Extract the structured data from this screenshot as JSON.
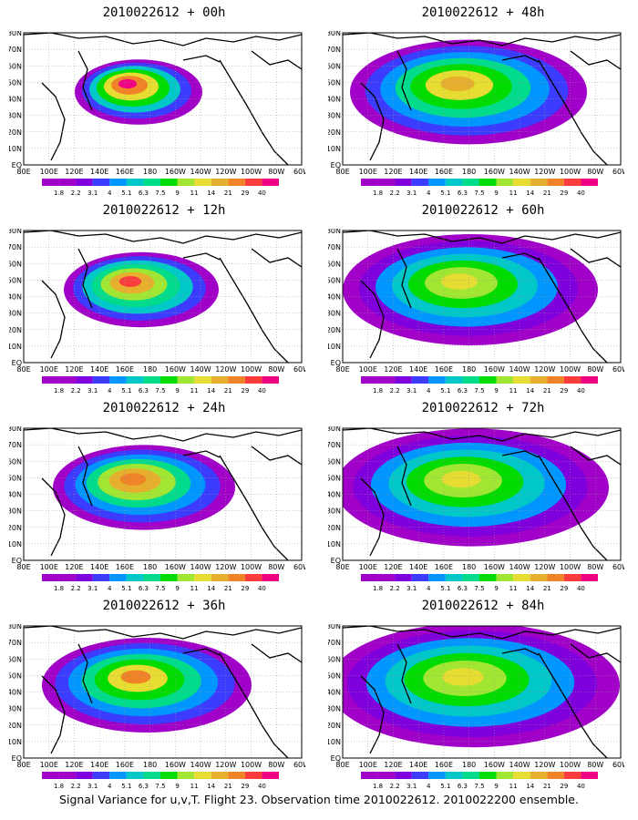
{
  "figure": {
    "footer": "Signal Variance for u,v,T. Flight 23. Observation time 2010022612. 2010022200 ensemble.",
    "lon_labels": [
      "80E",
      "100E",
      "120E",
      "140E",
      "160E",
      "180",
      "160W",
      "140W",
      "120W",
      "100W",
      "80W",
      "60W"
    ],
    "lat_labels": [
      "80N",
      "70N",
      "60N",
      "50N",
      "40N",
      "30N",
      "20N",
      "10N",
      "EQ"
    ],
    "colorbar": {
      "levels": [
        "1.8",
        "2.2",
        "3.1",
        "4",
        "5.1",
        "6.3",
        "7.5",
        "9",
        "11",
        "14",
        "21",
        "29",
        "40"
      ],
      "colors": [
        "#a000c8",
        "#7f00dc",
        "#3c3cff",
        "#0096ff",
        "#00c8c8",
        "#00dc8c",
        "#00dc00",
        "#a0e632",
        "#e6dc32",
        "#e6af2d",
        "#f08228",
        "#fa3c3c",
        "#f00082"
      ]
    },
    "panels": [
      {
        "id": "p00",
        "title": "2010022612 + 00h",
        "col": 0,
        "row": 0,
        "spread": 0.6,
        "peak": 1.0
      },
      {
        "id": "p12",
        "title": "2010022612 + 12h",
        "col": 0,
        "row": 1,
        "spread": 0.9,
        "peak": 0.9
      },
      {
        "id": "p24",
        "title": "2010022612 + 24h",
        "col": 0,
        "row": 2,
        "spread": 1.2,
        "peak": 0.85
      },
      {
        "id": "p36",
        "title": "2010022612 + 36h",
        "col": 0,
        "row": 3,
        "spread": 1.5,
        "peak": 0.8
      },
      {
        "id": "p48",
        "title": "2010022612 + 48h",
        "col": 1,
        "row": 0,
        "spread": 1.8,
        "peak": 0.75
      },
      {
        "id": "p60",
        "title": "2010022612 + 60h",
        "col": 1,
        "row": 1,
        "spread": 2.0,
        "peak": 0.7
      },
      {
        "id": "p72",
        "title": "2010022612 + 72h",
        "col": 1,
        "row": 2,
        "spread": 2.2,
        "peak": 0.7
      },
      {
        "id": "p84",
        "title": "2010022612 + 84h",
        "col": 1,
        "row": 3,
        "spread": 2.4,
        "peak": 0.7
      }
    ]
  }
}
